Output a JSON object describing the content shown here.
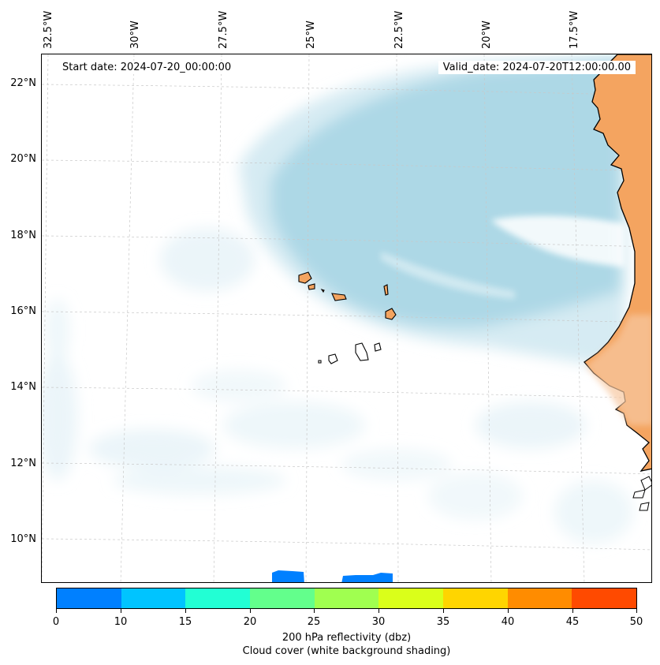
{
  "header": {
    "start_date": "Start date: 2024-07-20_00:00:00",
    "valid_date": "Valid_date: 2024-07-20T12:00:00.00"
  },
  "longitude_labels": [
    "32.5°W",
    "30°W",
    "27.5°W",
    "25°W",
    "22.5°W",
    "20°W",
    "17.5°W"
  ],
  "latitude_labels": [
    "22°N",
    "20°N",
    "18°N",
    "16°N",
    "14°N",
    "12°N",
    "10°N"
  ],
  "map_colors": {
    "land": "#f4a460",
    "cloud": "#add8e6",
    "reflectivity_low": "#0080ff",
    "coast": "#000000"
  },
  "colorbar": {
    "ticks": [
      "0",
      "10",
      "15",
      "20",
      "25",
      "30",
      "35",
      "40",
      "45",
      "50"
    ],
    "colors": [
      "#0080ff",
      "#00c4ff",
      "#22ffd4",
      "#63ff8c",
      "#a0ff50",
      "#daff1a",
      "#ffd500",
      "#ff8c00",
      "#ff4a00"
    ],
    "label_line1": "200 hPa reflectivity (dbz)",
    "label_line2": "Cloud cover (white background shading)"
  }
}
